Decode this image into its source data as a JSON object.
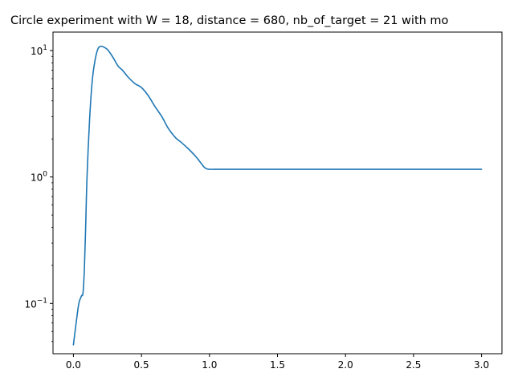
{
  "chart_data": {
    "type": "line",
    "title": "Circle experiment with W = 18, distance = 680, nb_of_target = 21 with mo",
    "xlabel": "",
    "ylabel": "",
    "xlim": [
      -0.15,
      3.15
    ],
    "ylim": [
      0.04,
      14
    ],
    "yscale": "log",
    "grid": false,
    "x_ticks": [
      {
        "value": 0.0,
        "label": "0.0"
      },
      {
        "value": 0.5,
        "label": "0.5"
      },
      {
        "value": 1.0,
        "label": "1.0"
      },
      {
        "value": 1.5,
        "label": "1.5"
      },
      {
        "value": 2.0,
        "label": "2.0"
      },
      {
        "value": 2.5,
        "label": "2.5"
      },
      {
        "value": 3.0,
        "label": "3.0"
      }
    ],
    "y_ticks": [
      {
        "value": 0.1,
        "label": "10",
        "exponent": "−1"
      },
      {
        "value": 1,
        "label": "10",
        "exponent": "0"
      },
      {
        "value": 10,
        "label": "10",
        "exponent": "1"
      }
    ],
    "series": [
      {
        "color": "#1f77b4",
        "x": [
          0.0,
          0.02,
          0.04,
          0.06,
          0.07,
          0.08,
          0.09,
          0.1,
          0.12,
          0.14,
          0.16,
          0.18,
          0.2,
          0.22,
          0.25,
          0.28,
          0.3,
          0.33,
          0.36,
          0.4,
          0.45,
          0.5,
          0.55,
          0.6,
          0.65,
          0.7,
          0.75,
          0.8,
          0.85,
          0.9,
          0.93,
          0.96,
          0.98,
          1.0,
          1.05,
          1.1,
          1.5,
          2.0,
          2.5,
          3.0
        ],
        "y": [
          0.047,
          0.07,
          0.1,
          0.115,
          0.12,
          0.18,
          0.4,
          1.0,
          3.0,
          6.0,
          8.5,
          10.3,
          10.8,
          10.7,
          10.2,
          9.2,
          8.5,
          7.5,
          7.0,
          6.2,
          5.5,
          5.1,
          4.4,
          3.6,
          3.0,
          2.4,
          2.05,
          1.85,
          1.65,
          1.45,
          1.32,
          1.2,
          1.16,
          1.15,
          1.15,
          1.15,
          1.15,
          1.15,
          1.15,
          1.15
        ]
      }
    ]
  }
}
